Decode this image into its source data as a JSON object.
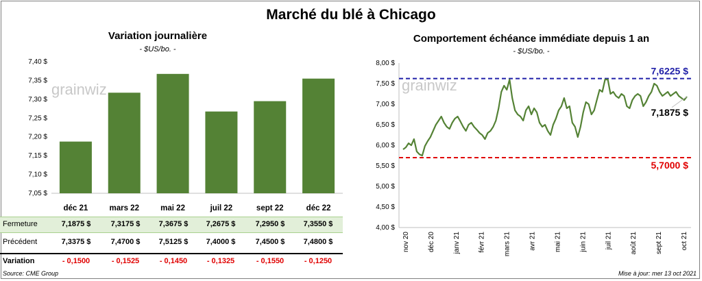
{
  "title": "Marché du blé à Chicago",
  "left": {
    "title": "Variation  journalière",
    "subtitle": "- $US/bo. -",
    "watermark": "grainwiz",
    "chart_data": {
      "type": "bar",
      "categories": [
        "déc 21",
        "mars 22",
        "mai 22",
        "juil 22",
        "sept 22",
        "déc 22"
      ],
      "values": [
        7.1875,
        7.3175,
        7.3675,
        7.2675,
        7.295,
        7.355
      ],
      "ylim": [
        7.05,
        7.4
      ],
      "yticks": [
        "7,05 $",
        "7,10 $",
        "7,15 $",
        "7,20 $",
        "7,25 $",
        "7,30 $",
        "7,35 $",
        "7,40 $"
      ],
      "bar_color": "#548235"
    },
    "table": {
      "rows": [
        {
          "label": "Fermeture",
          "values": [
            "7,1875  $",
            "7,3175  $",
            "7,3675  $",
            "7,2675  $",
            "7,2950  $",
            "7,3550  $"
          ]
        },
        {
          "label": "Précédent",
          "values": [
            "7,3375  $",
            "7,4700  $",
            "7,5125  $",
            "7,4000  $",
            "7,4500  $",
            "7,4800  $"
          ]
        },
        {
          "label": "Variation",
          "values": [
            "- 0,1500",
            "- 0,1525",
            "- 0,1450",
            "- 0,1325",
            "- 0,1550",
            "- 0,1250"
          ]
        }
      ]
    },
    "source": "Source: CME Group"
  },
  "right": {
    "title": "Comportement  échéance  immédiate  depuis  1  an",
    "subtitle": "- $US/bo. -",
    "watermark": "grainwiz",
    "chart_data": {
      "type": "line",
      "ylim": [
        4.0,
        8.0
      ],
      "yticks": [
        "4,00 $",
        "4,50 $",
        "5,00 $",
        "5,50 $",
        "6,00 $",
        "6,50 $",
        "7,00 $",
        "7,50 $",
        "8,00 $"
      ],
      "xticks": [
        "nov 20",
        "déc 20",
        "janv 21",
        "févr 21",
        "mars 21",
        "avr 21",
        "mai 21",
        "juin 21",
        "juil 21",
        "août 21",
        "sept 21",
        "oct 21"
      ],
      "high": {
        "value": 7.6225,
        "label": "7,6225  $",
        "color": "#1f1fa8"
      },
      "low": {
        "value": 5.7,
        "label": "5,7000  $",
        "color": "#e00000"
      },
      "last": {
        "value": 7.1875,
        "label": "7,1875 $"
      },
      "line_color": "#548235",
      "series": [
        {
          "x": [
            0,
            4,
            8,
            12,
            16,
            20,
            24,
            28,
            32,
            36,
            40,
            44,
            48,
            52,
            56,
            60,
            64,
            68,
            72,
            76,
            80,
            84,
            88,
            92,
            96,
            100,
            104,
            108,
            112,
            116,
            120,
            124,
            128,
            132,
            136,
            140,
            144,
            148,
            152,
            156,
            160,
            164,
            168,
            172,
            176,
            180,
            184,
            188,
            192,
            196,
            200,
            204,
            208,
            212,
            216,
            220,
            224,
            228,
            232,
            236,
            240,
            244,
            248,
            252,
            256,
            260,
            264,
            268,
            272,
            276,
            280,
            284,
            288,
            292,
            296,
            300,
            304,
            308,
            312,
            316,
            320,
            324,
            328,
            332,
            336,
            340,
            344,
            348,
            352,
            356,
            360,
            364,
            368,
            372,
            376,
            380,
            384,
            388,
            392,
            396,
            400,
            404,
            408,
            412,
            416
          ],
          "values": [
            5.9,
            5.95,
            6.05,
            6.0,
            6.15,
            5.85,
            5.78,
            5.75,
            5.98,
            6.1,
            6.2,
            6.35,
            6.5,
            6.6,
            6.7,
            6.55,
            6.45,
            6.4,
            6.55,
            6.65,
            6.7,
            6.58,
            6.45,
            6.35,
            6.5,
            6.55,
            6.45,
            6.38,
            6.3,
            6.25,
            6.15,
            6.3,
            6.35,
            6.45,
            6.6,
            6.9,
            7.3,
            7.45,
            7.35,
            7.6,
            7.15,
            6.85,
            6.75,
            6.7,
            6.6,
            6.85,
            6.95,
            6.75,
            6.9,
            6.8,
            6.55,
            6.45,
            6.5,
            6.35,
            6.25,
            6.5,
            6.65,
            6.85,
            6.95,
            7.15,
            6.9,
            6.95,
            6.55,
            6.45,
            6.2,
            6.45,
            6.8,
            7.05,
            7.0,
            6.75,
            6.85,
            7.1,
            7.35,
            7.3,
            7.6,
            7.6,
            7.25,
            7.3,
            7.2,
            7.15,
            7.25,
            7.2,
            6.95,
            6.9,
            7.1,
            7.2,
            7.25,
            7.2,
            6.95,
            7.05,
            7.2,
            7.3,
            7.5,
            7.45,
            7.3,
            7.2,
            7.25,
            7.3,
            7.2,
            7.25,
            7.3,
            7.2,
            7.15,
            7.1,
            7.1875
          ]
        }
      ]
    },
    "updated": "Mise à jour: mer 13 oct 2021"
  }
}
